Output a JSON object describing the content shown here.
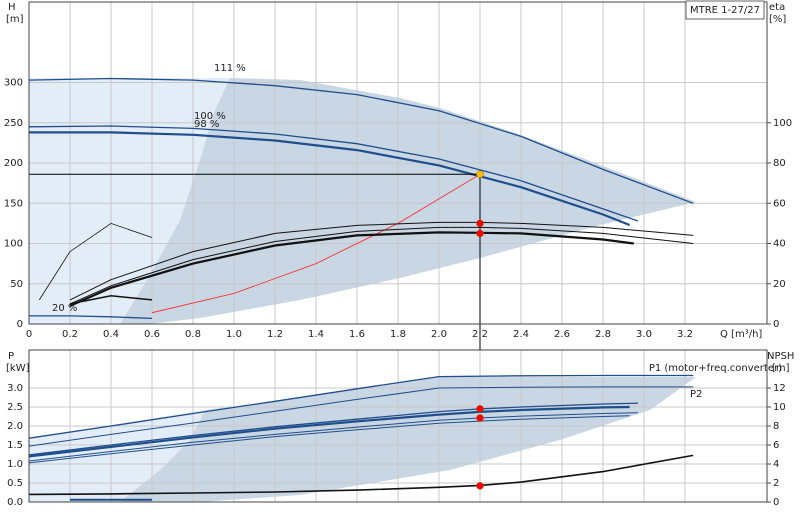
{
  "chart_data": [
    {
      "type": "line",
      "title": "MTRE 1-27/27",
      "ylabel": "H",
      "yunit": "[m]",
      "y2label": "eta",
      "y2unit": "[%]",
      "xlabel": "Q [m³/h]",
      "xlim": [
        0,
        3.6
      ],
      "ylim": [
        0,
        400
      ],
      "y2lim": [
        0,
        160
      ],
      "grid": true,
      "xtick_labels": true,
      "xticks": [
        0,
        0.2,
        0.4,
        0.6,
        0.8,
        {
          "value": 1.0,
          "label": "1.0"
        },
        1.2,
        1.4,
        1.6,
        1.8,
        {
          "value": 2.0,
          "label": "2.0"
        },
        2.2,
        2.4,
        2.6,
        2.8,
        {
          "value": 3.0,
          "label": "3.0"
        },
        3.2
      ],
      "yticks": [
        0,
        50,
        100,
        150,
        200,
        250,
        300
      ],
      "y2ticks": [
        0,
        20,
        40,
        60,
        80,
        100
      ],
      "series": [
        {
          "name": "111 %",
          "color": "#1f4e8c",
          "width": 1.3,
          "x": [
            0,
            0.4,
            0.8,
            1.2,
            1.6,
            2.0,
            2.4,
            2.8,
            3.24
          ],
          "values": [
            303,
            305,
            303,
            296,
            285,
            265,
            233,
            192,
            150
          ]
        },
        {
          "name": "100 %",
          "color": "#1f4e8c",
          "width": 1.3,
          "x": [
            0,
            0.4,
            0.8,
            1.2,
            1.6,
            2.0,
            2.4,
            2.8,
            2.97
          ],
          "values": [
            245,
            246,
            243,
            236,
            224,
            205,
            178,
            143,
            128
          ]
        },
        {
          "name": "98 %",
          "color": "#1f4e8c",
          "width": 2.2,
          "x": [
            0,
            0.4,
            0.8,
            1.2,
            1.6,
            2.0,
            2.4,
            2.8,
            2.93
          ],
          "values": [
            238,
            238,
            235,
            228,
            216,
            197,
            170,
            136,
            123
          ]
        },
        {
          "name": "20 %",
          "color": "#1f4e8c",
          "width": 1.3,
          "x": [
            0,
            0.2,
            0.4,
            0.6
          ],
          "values": [
            10,
            10,
            9,
            7
          ]
        },
        {
          "color": "#ff2020",
          "width": 0.8,
          "x": [
            0.6,
            1.0,
            1.4,
            1.8,
            2.2
          ],
          "values": [
            14,
            38,
            75,
            125,
            186
          ]
        },
        {
          "axis": "y2",
          "color": "#111111",
          "width": 1,
          "x": [
            0.2,
            0.4,
            0.8,
            1.2,
            1.6,
            2.0,
            2.2,
            2.4,
            2.8,
            3.24
          ],
          "values": [
            12,
            22,
            36,
            45,
            49,
            50.5,
            50.5,
            50,
            48,
            44
          ]
        },
        {
          "axis": "y2",
          "color": "#111111",
          "width": 1,
          "x": [
            0.2,
            0.4,
            0.8,
            1.2,
            1.6,
            2.0,
            2.2,
            2.4,
            2.8,
            3.24
          ],
          "values": [
            10,
            19,
            32,
            41,
            46,
            48,
            48,
            47.5,
            45,
            40
          ]
        },
        {
          "axis": "y2",
          "color": "#111111",
          "width": 2.2,
          "x": [
            0.2,
            0.4,
            0.8,
            1.2,
            1.6,
            2.0,
            2.2,
            2.4,
            2.8,
            2.95
          ],
          "values": [
            9,
            18,
            30,
            39,
            44,
            45.5,
            45.3,
            45,
            42,
            40
          ]
        },
        {
          "axis": "y2",
          "color": "#111111",
          "width": 0.8,
          "x": [
            0.05,
            0.2,
            0.4,
            0.6
          ],
          "values": [
            12,
            36,
            50,
            43
          ]
        },
        {
          "axis": "y2",
          "color": "#111111",
          "width": 1.5,
          "x": [
            0.2,
            0.4,
            0.6
          ],
          "values": [
            10,
            14,
            12
          ]
        }
      ],
      "markers": [
        {
          "x": 2.2,
          "y": 186,
          "color": "#ffc000"
        },
        {
          "x": 2.2,
          "y": 50,
          "axis": "y2",
          "color": "#ff0000"
        },
        {
          "x": 2.2,
          "y": 45,
          "axis": "y2",
          "color": "#ff0000"
        }
      ]
    },
    {
      "type": "line",
      "ylabel": "P",
      "yunit": "[kW]",
      "y2label": "NPSH",
      "y2unit": "[m]",
      "xlim": [
        0,
        3.6
      ],
      "ylim": [
        0,
        4
      ],
      "y2lim": [
        0,
        16
      ],
      "grid": true,
      "xtick_labels": false,
      "xticks": [
        0,
        0.2,
        0.4,
        0.6,
        0.8,
        1,
        1.2,
        1.4,
        1.6,
        1.8,
        2,
        2.2,
        2.4,
        2.6,
        2.8,
        3,
        3.2
      ],
      "yticks": [
        {
          "value": 0,
          "label": "0.0"
        },
        0.5,
        {
          "value": 1,
          "label": "1.0"
        },
        1.5,
        {
          "value": 2,
          "label": "2.0"
        },
        2.5,
        {
          "value": 3,
          "label": "3.0"
        }
      ],
      "y2ticks": [
        0,
        2,
        4,
        6,
        8,
        10,
        12
      ],
      "series": [
        {
          "name": "P1 (motor+freq.converter)",
          "color": "#1f4e8c",
          "width": 1.3,
          "x": [
            0,
            0.4,
            0.8,
            1.2,
            1.6,
            2.0,
            2.4,
            2.8,
            3.24
          ],
          "values": [
            1.68,
            2.0,
            2.33,
            2.65,
            2.98,
            3.3,
            3.32,
            3.33,
            3.33
          ]
        },
        {
          "name": "P2",
          "color": "#1f4e8c",
          "width": 1,
          "x": [
            0,
            0.4,
            0.8,
            1.2,
            1.6,
            2.0,
            2.4,
            2.8,
            3.24
          ],
          "values": [
            1.47,
            1.78,
            2.08,
            2.39,
            2.7,
            3.0,
            3.02,
            3.03,
            3.03
          ]
        },
        {
          "color": "#1f4e8c",
          "width": 1.3,
          "x": [
            0,
            0.4,
            0.8,
            1.2,
            1.6,
            2.0,
            2.2,
            2.4,
            2.8,
            2.97
          ],
          "values": [
            1.24,
            1.5,
            1.75,
            1.98,
            2.18,
            2.38,
            2.45,
            2.5,
            2.58,
            2.6
          ]
        },
        {
          "color": "#1f4e8c",
          "width": 1,
          "x": [
            0,
            0.4,
            0.8,
            1.2,
            1.6,
            2.0,
            2.2,
            2.4,
            2.8,
            2.97
          ],
          "values": [
            1.08,
            1.33,
            1.57,
            1.78,
            1.97,
            2.15,
            2.21,
            2.26,
            2.33,
            2.35
          ]
        },
        {
          "color": "#1f4e8c",
          "width": 2.2,
          "x": [
            0,
            0.4,
            0.8,
            1.2,
            1.6,
            2.0,
            2.2,
            2.4,
            2.8,
            2.93
          ],
          "values": [
            1.2,
            1.45,
            1.7,
            1.93,
            2.12,
            2.3,
            2.37,
            2.42,
            2.49,
            2.5
          ]
        },
        {
          "color": "#1f4e8c",
          "width": 1,
          "x": [
            0,
            0.4,
            0.8,
            1.2,
            1.6,
            2.0,
            2.2,
            2.4,
            2.8,
            2.93
          ],
          "values": [
            1.03,
            1.27,
            1.5,
            1.72,
            1.9,
            2.07,
            2.13,
            2.18,
            2.25,
            2.27
          ]
        },
        {
          "color": "#1f4e8c",
          "width": 2,
          "x": [
            0.2,
            0.6
          ],
          "values": [
            0.06,
            0.06
          ]
        },
        {
          "axis": "y2",
          "color": "#111111",
          "width": 1.6,
          "x": [
            0,
            0.4,
            0.8,
            1.2,
            1.6,
            2.0,
            2.2,
            2.4,
            2.8,
            3.24
          ],
          "values": [
            0.8,
            0.85,
            0.95,
            1.05,
            1.25,
            1.55,
            1.75,
            2.1,
            3.2,
            4.9
          ]
        }
      ],
      "markers": [
        {
          "x": 2.2,
          "y": 2.45,
          "color": "#ff0000"
        },
        {
          "x": 2.2,
          "y": 2.21,
          "color": "#ff0000"
        },
        {
          "x": 2.2,
          "y": 1.7,
          "axis": "y2",
          "color": "#ff0000"
        }
      ]
    }
  ]
}
